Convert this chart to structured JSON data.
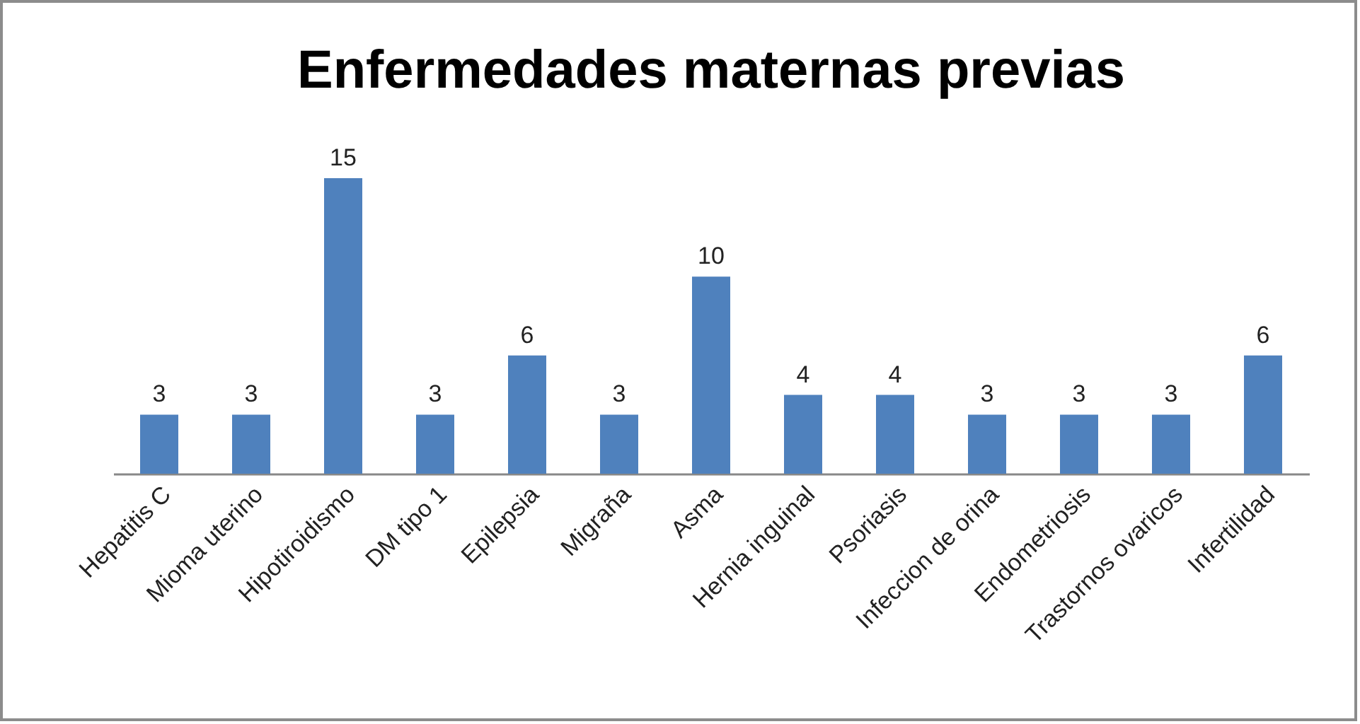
{
  "chart_data": {
    "type": "bar",
    "title": "Enfermedades maternas previas",
    "categories": [
      "Hepatitis C",
      "Mioma uterino",
      "Hipotiroidismo",
      "DM tipo 1",
      "Epilepsia",
      "Migraña",
      "Asma",
      "Hernia inguinal",
      "Psoriasis",
      "Infeccion de orina",
      "Endometriosis",
      "Trastornos ovaricos",
      "Infertilidad"
    ],
    "values": [
      3,
      3,
      15,
      3,
      6,
      3,
      10,
      4,
      4,
      3,
      3,
      3,
      6
    ],
    "color": "#4f81bd",
    "data_labels": true
  }
}
